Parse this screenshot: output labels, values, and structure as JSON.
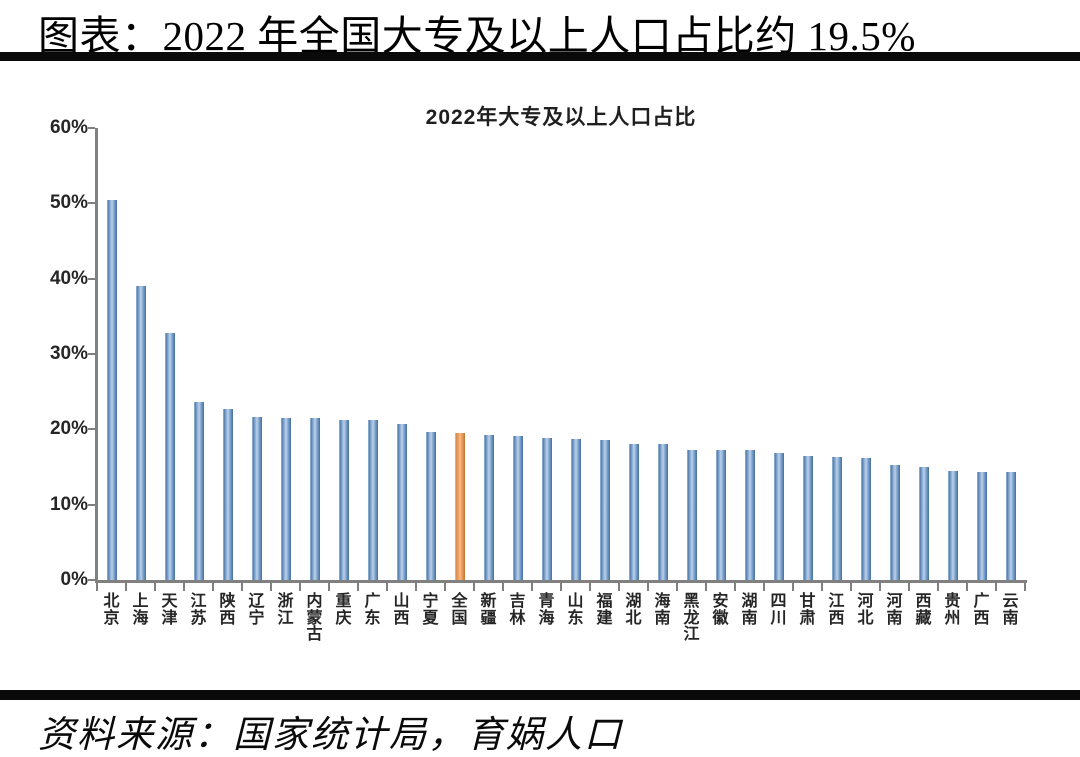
{
  "page": {
    "header_title": "图表：2022 年全国大专及以上人口占比约 19.5%",
    "source_text": "资料来源：国家统计局，育娲人口"
  },
  "chart_data": {
    "type": "bar",
    "title": "2022年大专及以上人口占比",
    "categories": [
      "北京",
      "上海",
      "天津",
      "江苏",
      "陕西",
      "辽宁",
      "浙江",
      "内蒙古",
      "重庆",
      "广东",
      "山西",
      "宁夏",
      "全国",
      "新疆",
      "吉林",
      "青海",
      "山东",
      "福建",
      "湖北",
      "海南",
      "黑龙江",
      "安徽",
      "湖南",
      "四川",
      "甘肃",
      "江西",
      "河北",
      "河南",
      "西藏",
      "贵州",
      "广西",
      "云南"
    ],
    "values": [
      50.4,
      39.0,
      32.8,
      23.6,
      22.7,
      21.6,
      21.5,
      21.5,
      21.3,
      21.2,
      20.7,
      19.7,
      19.5,
      19.3,
      19.1,
      18.9,
      18.7,
      18.6,
      18.0,
      18.0,
      17.3,
      17.3,
      17.2,
      16.9,
      16.5,
      16.3,
      16.2,
      15.2,
      15.0,
      14.5,
      14.3,
      14.3
    ],
    "highlight_category": "全国",
    "highlight_index": 12,
    "bar_color": "#6f98c4",
    "highlight_color": "#e8955a",
    "axis_color": "#808080",
    "ylim": [
      0,
      60
    ],
    "ytick_labels": [
      "60%",
      "50%",
      "40%",
      "30%",
      "20%",
      "10%",
      "0%"
    ],
    "xlabel": "",
    "ylabel": "",
    "grid": false,
    "legend": "none"
  }
}
